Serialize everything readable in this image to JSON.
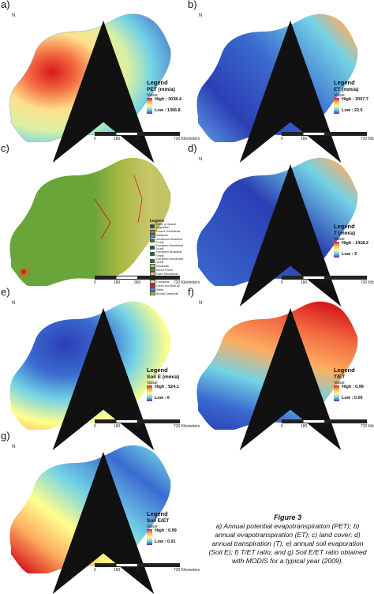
{
  "figure": {
    "title": "Figure 3",
    "caption": "a) Annual potential evapotranspiration (PET); b) annual evapotranspiration (ET); c) land cover; d) annual transpiration (T); e) annual soil evaporation (Soil E); f) T/ET ratio; and g) Soil E/ET ratio obtained with MODIS for a typical year (2009)."
  },
  "north_label": "N",
  "scale_ticks": [
    "0",
    "180",
    "360",
    "720 Kilometers"
  ],
  "panels": [
    {
      "label": "a)",
      "legend_title": "Legend",
      "unit": "PET (mm/a)",
      "value_label": "Value",
      "high": "High : 3038.4",
      "low": "Low : 1366.8",
      "ramp": "redblue"
    },
    {
      "label": "b)",
      "legend_title": "Legend",
      "unit": "ET (mm/a)",
      "value_label": "Value",
      "high": "High : 2007.7",
      "low": "Low : 22.5",
      "ramp": "redblue"
    },
    {
      "label": "c)",
      "legend_title": "Legend",
      "ramp": "landcover",
      "classes": [
        {
          "name": "Water or Sparse Vegetation",
          "color": "#1f3f8f"
        },
        {
          "name": "Closed Shrublands",
          "color": "#b07a2a"
        },
        {
          "name": "Wetlands",
          "color": "#3a8fb8"
        },
        {
          "name": "Deciduous Broadleaf Forest",
          "color": "#2e7d32"
        },
        {
          "name": "Evergreen Needleleaf Forest",
          "color": "#0b5e1f"
        },
        {
          "name": "Evergreen Broadleaf Forest",
          "color": "#176b2c"
        },
        {
          "name": "Evergreen Needleleaf Forest",
          "color": "#1a7a1a"
        },
        {
          "name": "Savannas",
          "color": "#c9c24a"
        },
        {
          "name": "Mixed Forest",
          "color": "#3d9b3d"
        },
        {
          "name": "Open Shrublands",
          "color": "#d9c88a"
        },
        {
          "name": "Grasslands",
          "color": "#8fbf4a"
        },
        {
          "name": "Croplands",
          "color": "#e8e07a"
        },
        {
          "name": "Urban and Built-up",
          "color": "#d11f1f"
        },
        {
          "name": "Water",
          "color": "#4f7fd9"
        },
        {
          "name": "Woody Savannas",
          "color": "#a8b842"
        }
      ]
    },
    {
      "label": "d)",
      "legend_title": "Legend",
      "unit": "T (mm/a)",
      "value_label": "Value",
      "high": "High : 1418.2",
      "low": "Low : 3",
      "ramp": "redblue"
    },
    {
      "label": "e)",
      "legend_title": "Legend",
      "unit": "Soil E (mm/a)",
      "value_label": "Value",
      "high": "High : 524.1",
      "low": "Low : 6",
      "ramp": "redblue"
    },
    {
      "label": "f)",
      "legend_title": "Legend",
      "unit": "T/ET",
      "value_label": "Value",
      "high": "High : 0.99",
      "low": "Low : 0.00",
      "ramp": "redblue"
    },
    {
      "label": "g)",
      "legend_title": "Legend",
      "unit": "Soil E/ET",
      "value_label": "Value",
      "high": "High : 0.99",
      "low": "Low : 0.01",
      "ramp": "redblue"
    }
  ],
  "colors": {
    "ramp_high": "#d7191c",
    "ramp_mid_hi": "#fdae61",
    "ramp_mid": "#ffff8c",
    "ramp_mid_lo": "#73d2e6",
    "ramp_low": "#2b3fb4",
    "landcover_base": "#6aa53a",
    "landcover_east": "#c8c66a"
  }
}
